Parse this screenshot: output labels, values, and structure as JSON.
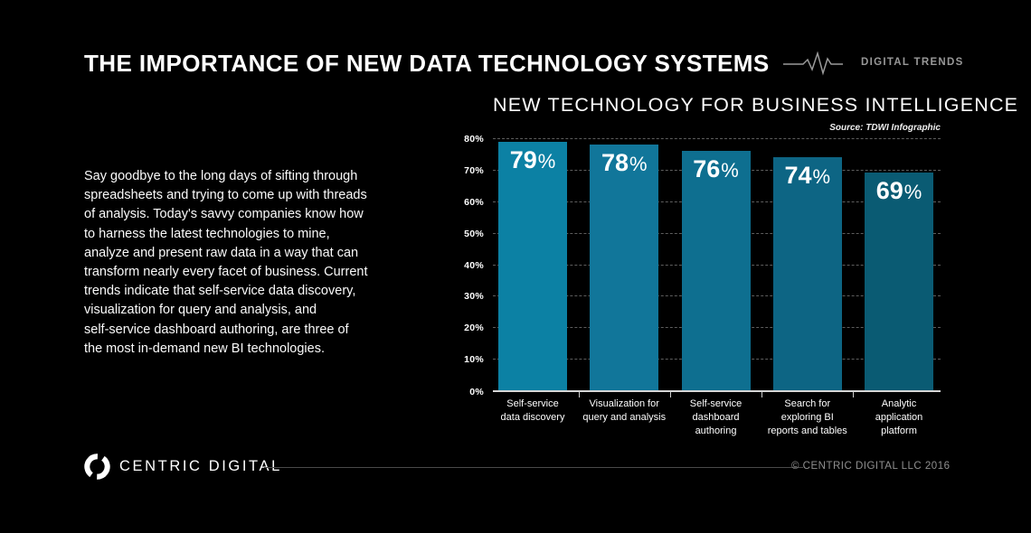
{
  "page": {
    "background": "#000000"
  },
  "header": {
    "title": "THE IMPORTANCE OF NEW DATA TECHNOLOGY SYSTEMS",
    "brand_label": "DIGITAL TRENDS"
  },
  "intro": {
    "text": "Say goodbye to the long days of sifting through\nspreadsheets and trying to come up with threads\nof analysis. Today's savvy companies know how\nto harness the latest technologies to mine,\nanalyze and present raw data in a way that can\ntransform nearly every facet of business. Current\ntrends indicate that self-service data discovery,\nvisualization for query and analysis, and\nself-service dashboard authoring, are three of\nthe most in-demand new BI technologies."
  },
  "chart": {
    "title": "NEW TECHNOLOGY FOR BUSINESS INTELLIGENCE",
    "source": "Source: TDWI Infographic"
  },
  "chart_data": {
    "type": "bar",
    "title": "NEW TECHNOLOGY FOR BUSINESS INTELLIGENCE",
    "source": "Source: TDWI Infographic",
    "categories": [
      "Self-service data discovery",
      "Visualization for query and analysis",
      "Self-service dashboard authoring",
      "Search for exploring BI reports and tables",
      "Analytic application platform"
    ],
    "category_label_lines": [
      [
        "Self-service",
        "data discovery"
      ],
      [
        "Visualization for",
        "query and analysis"
      ],
      [
        "Self-service",
        "dashboard",
        "authoring"
      ],
      [
        "Search for",
        "exploring BI",
        "reports and tables"
      ],
      [
        "Analytic",
        "application",
        "platform"
      ]
    ],
    "values": [
      79,
      78,
      76,
      74,
      69
    ],
    "unit": "%",
    "bar_colors": [
      "#0c81a4",
      "#11769a",
      "#0e6f90",
      "#0d6584",
      "#0a5b73"
    ],
    "y_ticks": [
      "80%",
      "70%",
      "60%",
      "50%",
      "40%",
      "30%",
      "20%",
      "10%",
      "0%"
    ],
    "ylim": [
      0,
      80
    ],
    "grid": "dashed-horizontal",
    "legend": "none"
  },
  "footer": {
    "logo_text": "CENTRIC DIGITAL",
    "copyright": "© CENTRIC DIGITAL LLC 2016"
  }
}
